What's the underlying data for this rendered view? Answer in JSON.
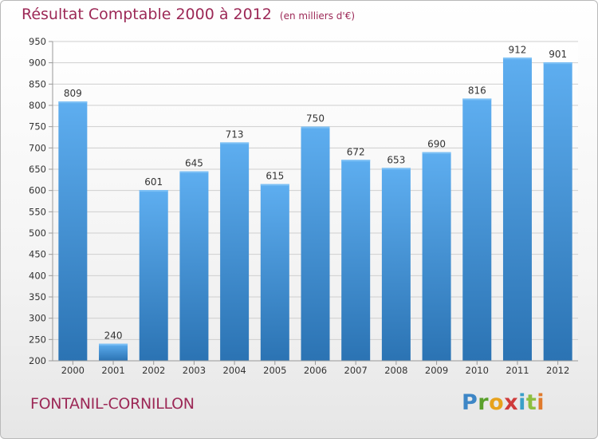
{
  "title": "Résultat Comptable 2000 à 2012",
  "subtitle": "(en milliers d'€)",
  "place": "FONTANIL-CORNILLON",
  "logo": {
    "text": "Proxiti",
    "letters": [
      "P",
      "r",
      "o",
      "x",
      "i",
      "t",
      "i"
    ]
  },
  "colors": {
    "bar": "#4a9de0",
    "bar_dark": "#2b73b3",
    "title": "#9c2856",
    "grid": "#cccccc"
  },
  "chart_data": {
    "type": "bar",
    "title": "Résultat Comptable 2000 à 2012",
    "subtitle": "(en milliers d'€)",
    "xlabel": "",
    "ylabel": "",
    "categories": [
      "2000",
      "2001",
      "2002",
      "2003",
      "2004",
      "2005",
      "2006",
      "2007",
      "2008",
      "2009",
      "2010",
      "2011",
      "2012"
    ],
    "values": [
      809,
      240,
      601,
      645,
      713,
      615,
      750,
      672,
      653,
      690,
      816,
      912,
      901
    ],
    "ylim": [
      200,
      950
    ],
    "yticks": [
      "200",
      "250",
      "300",
      "350",
      "400",
      "450",
      "500",
      "550",
      "600",
      "650",
      "700",
      "750",
      "800",
      "850",
      "900",
      "950"
    ],
    "grid": true,
    "legend": "none"
  }
}
